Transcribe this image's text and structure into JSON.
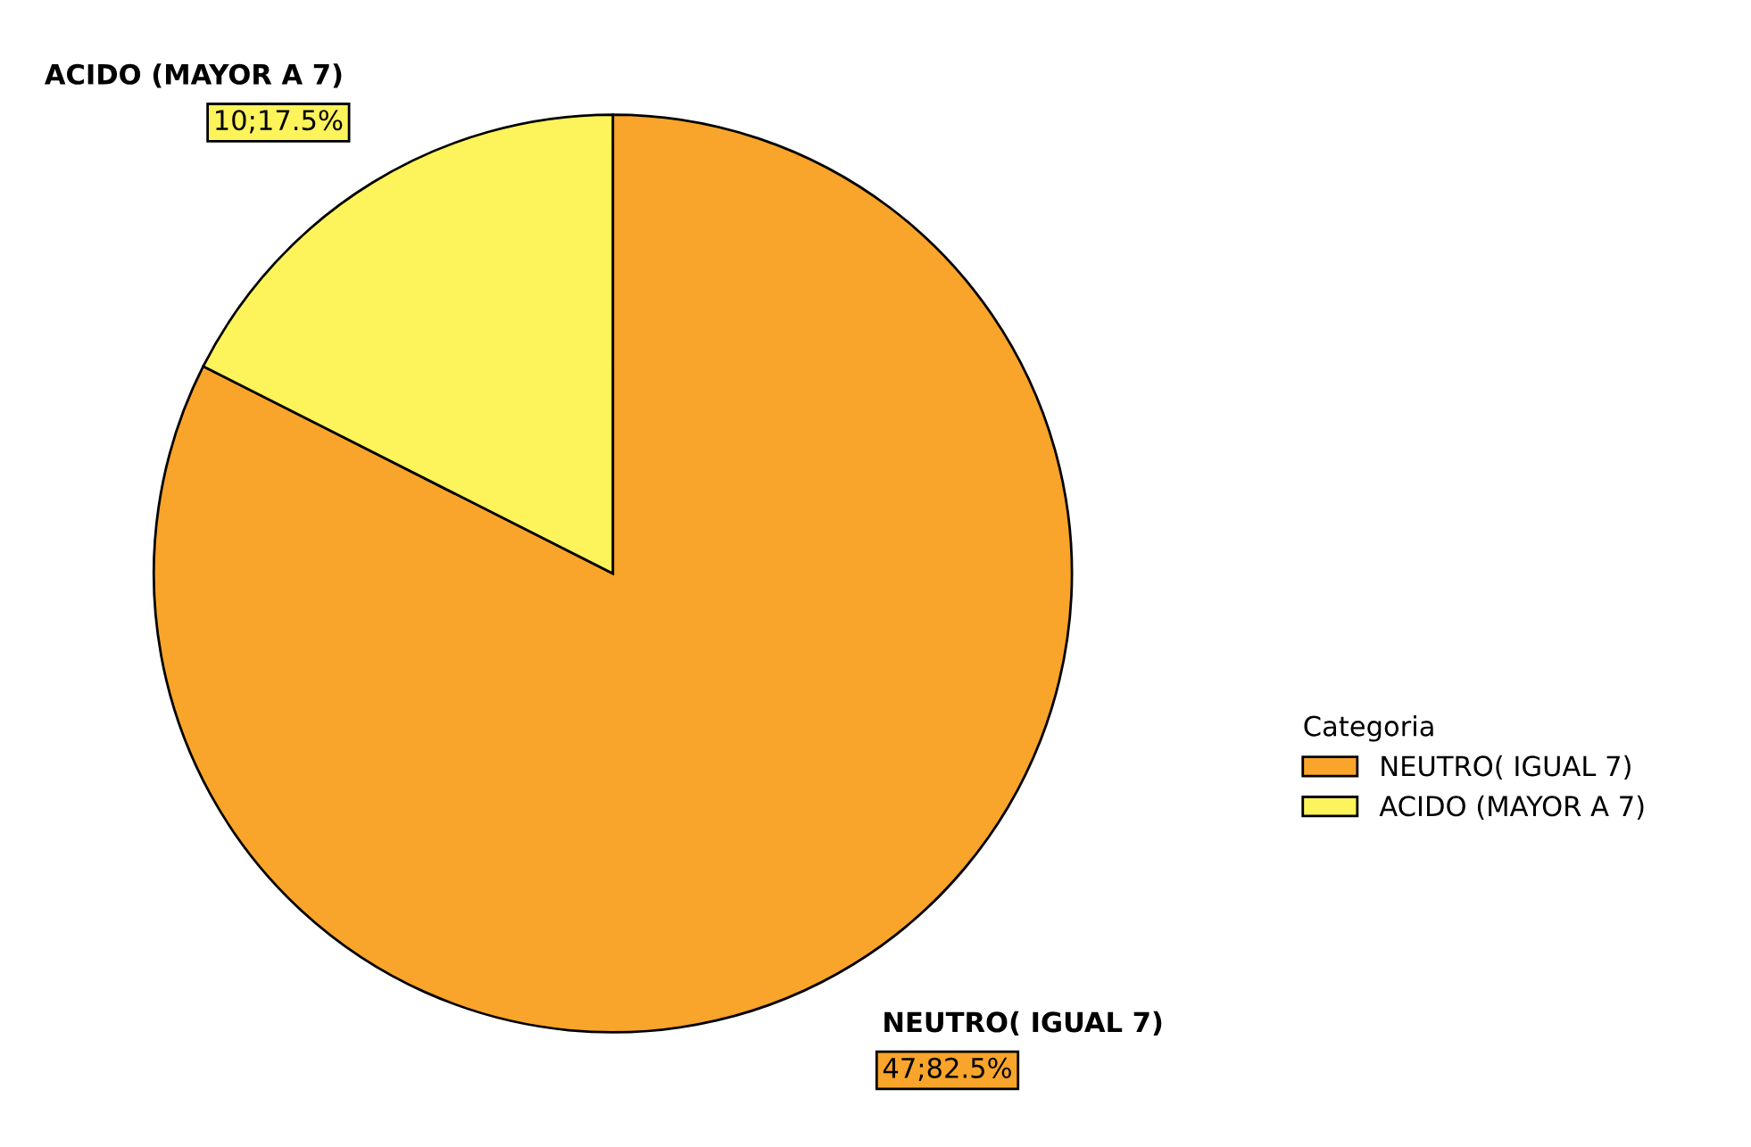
{
  "chart_data": {
    "type": "pie",
    "legend_title": "Categoria",
    "legend": "right",
    "categories": [
      "NEUTRO( IGUAL 7)",
      "ACIDO (MAYOR A 7)"
    ],
    "values": [
      47,
      10
    ],
    "colors": [
      "#f9a42a",
      "#fdf35a"
    ],
    "value_labels": [
      "47;82.5%",
      "10;17.5%"
    ]
  }
}
